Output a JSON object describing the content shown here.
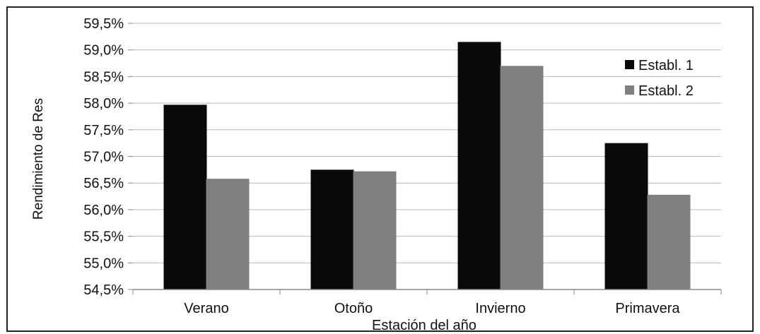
{
  "chart_data": {
    "type": "bar",
    "title": "",
    "xlabel": "Estación del año",
    "ylabel": "Rendimiento de Res",
    "categories": [
      "Verano",
      "Otoño",
      "Invierno",
      "Primavera"
    ],
    "series": [
      {
        "name": "Establ. 1",
        "color": "#0a0a0a",
        "values": [
          57.97,
          56.75,
          59.15,
          57.25
        ]
      },
      {
        "name": "Establ. 2",
        "color": "#7f7f7f",
        "values": [
          56.58,
          56.72,
          58.7,
          56.28
        ]
      }
    ],
    "ylim": [
      54.5,
      59.5
    ],
    "yticks": [
      54.5,
      55.0,
      55.5,
      56.0,
      56.5,
      57.0,
      57.5,
      58.0,
      58.5,
      59.0,
      59.5
    ],
    "ytick_labels": [
      "54,5%",
      "55,0%",
      "55,5%",
      "56,0%",
      "56,5%",
      "57,0%",
      "57,5%",
      "58,0%",
      "58,5%",
      "59,0%",
      "59,5%"
    ],
    "grid": true,
    "legend": "top-right"
  }
}
